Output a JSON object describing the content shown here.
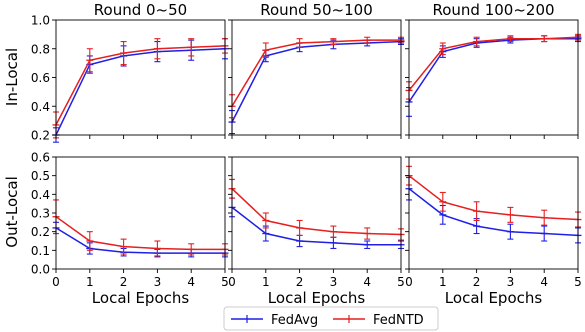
{
  "figure": {
    "ylabels": [
      "In-Local",
      "Out-Local"
    ],
    "xlabel": "Local Epochs",
    "legend_position": "bottom-center"
  },
  "chart_data": [
    {
      "type": "line",
      "row": 0,
      "col": 0,
      "title": "Round 0~50",
      "ylabel": "In-Local",
      "xlabel": "",
      "x": [
        0,
        1,
        2,
        3,
        4,
        5
      ],
      "xlim": [
        0,
        5
      ],
      "ylim": [
        0.2,
        1.0
      ],
      "yticks": [
        0.2,
        0.4,
        0.6,
        0.8,
        1.0
      ],
      "grid": false,
      "series": [
        {
          "name": "FedAvg",
          "color": "#1f1fe6",
          "values": [
            0.2,
            0.69,
            0.75,
            0.78,
            0.79,
            0.8
          ],
          "errors": [
            0.05,
            0.06,
            0.07,
            0.07,
            0.07,
            0.07
          ]
        },
        {
          "name": "FedNTD",
          "color": "#e61f1f",
          "values": [
            0.27,
            0.72,
            0.77,
            0.8,
            0.81,
            0.82
          ],
          "errors": [
            0.09,
            0.08,
            0.08,
            0.07,
            0.06,
            0.05
          ]
        }
      ]
    },
    {
      "type": "line",
      "row": 0,
      "col": 1,
      "title": "Round 50~100",
      "ylabel": "",
      "xlabel": "",
      "x": [
        0,
        1,
        2,
        3,
        4,
        5
      ],
      "xlim": [
        0,
        5
      ],
      "ylim": [
        0.2,
        1.0
      ],
      "yticks": [
        0.2,
        0.4,
        0.6,
        0.8,
        1.0
      ],
      "grid": false,
      "series": [
        {
          "name": "FedAvg",
          "color": "#1f1fe6",
          "values": [
            0.29,
            0.75,
            0.81,
            0.83,
            0.84,
            0.85
          ],
          "errors": [
            0.08,
            0.04,
            0.03,
            0.03,
            0.02,
            0.02
          ]
        },
        {
          "name": "FedNTD",
          "color": "#e61f1f",
          "values": [
            0.4,
            0.79,
            0.84,
            0.85,
            0.86,
            0.86
          ],
          "errors": [
            0.08,
            0.05,
            0.03,
            0.02,
            0.02,
            0.02
          ]
        }
      ]
    },
    {
      "type": "line",
      "row": 0,
      "col": 2,
      "title": "Round 100~200",
      "ylabel": "",
      "xlabel": "",
      "x": [
        0,
        1,
        2,
        3,
        4,
        5
      ],
      "xlim": [
        0,
        5
      ],
      "ylim": [
        0.2,
        1.0
      ],
      "yticks": [
        0.2,
        0.4,
        0.6,
        0.8,
        1.0
      ],
      "grid": false,
      "series": [
        {
          "name": "FedAvg",
          "color": "#1f1fe6",
          "values": [
            0.43,
            0.78,
            0.84,
            0.86,
            0.87,
            0.87
          ],
          "errors": [
            0.1,
            0.04,
            0.03,
            0.02,
            0.02,
            0.02
          ]
        },
        {
          "name": "FedNTD",
          "color": "#e61f1f",
          "values": [
            0.51,
            0.8,
            0.85,
            0.87,
            0.87,
            0.88
          ],
          "errors": [
            0.06,
            0.04,
            0.03,
            0.02,
            0.02,
            0.02
          ]
        }
      ]
    },
    {
      "type": "line",
      "row": 1,
      "col": 0,
      "title": "",
      "ylabel": "Out-Local",
      "xlabel": "Local Epochs",
      "x": [
        0,
        1,
        2,
        3,
        4,
        5
      ],
      "xlim": [
        0,
        5
      ],
      "ylim": [
        0.0,
        0.6
      ],
      "yticks": [
        0.0,
        0.1,
        0.2,
        0.3,
        0.4,
        0.5,
        0.6
      ],
      "grid": false,
      "series": [
        {
          "name": "FedAvg",
          "color": "#1f1fe6",
          "values": [
            0.22,
            0.11,
            0.09,
            0.085,
            0.085,
            0.085
          ],
          "errors": [
            0.03,
            0.03,
            0.02,
            0.02,
            0.02,
            0.02
          ]
        },
        {
          "name": "FedNTD",
          "color": "#e61f1f",
          "values": [
            0.28,
            0.15,
            0.12,
            0.11,
            0.105,
            0.105
          ],
          "errors": [
            0.09,
            0.05,
            0.04,
            0.04,
            0.03,
            0.03
          ]
        }
      ]
    },
    {
      "type": "line",
      "row": 1,
      "col": 1,
      "title": "",
      "ylabel": "",
      "xlabel": "Local Epochs",
      "x": [
        0,
        1,
        2,
        3,
        4,
        5
      ],
      "xlim": [
        0,
        5
      ],
      "ylim": [
        0.0,
        0.6
      ],
      "yticks": [
        0.0,
        0.1,
        0.2,
        0.3,
        0.4,
        0.5,
        0.6
      ],
      "grid": false,
      "series": [
        {
          "name": "FedAvg",
          "color": "#1f1fe6",
          "values": [
            0.33,
            0.19,
            0.15,
            0.14,
            0.13,
            0.13
          ],
          "errors": [
            0.05,
            0.04,
            0.03,
            0.03,
            0.02,
            0.02
          ]
        },
        {
          "name": "FedNTD",
          "color": "#e61f1f",
          "values": [
            0.43,
            0.26,
            0.22,
            0.2,
            0.19,
            0.185
          ],
          "errors": [
            0.05,
            0.04,
            0.04,
            0.03,
            0.03,
            0.03
          ]
        }
      ]
    },
    {
      "type": "line",
      "row": 1,
      "col": 2,
      "title": "",
      "ylabel": "",
      "xlabel": "Local Epochs",
      "x": [
        0,
        1,
        2,
        3,
        4,
        5
      ],
      "xlim": [
        0,
        5
      ],
      "ylim": [
        0.0,
        0.6
      ],
      "yticks": [
        0.0,
        0.1,
        0.2,
        0.3,
        0.4,
        0.5,
        0.6
      ],
      "grid": false,
      "series": [
        {
          "name": "FedAvg",
          "color": "#1f1fe6",
          "values": [
            0.43,
            0.29,
            0.23,
            0.2,
            0.19,
            0.18
          ],
          "errors": [
            0.06,
            0.05,
            0.04,
            0.04,
            0.04,
            0.04
          ]
        },
        {
          "name": "FedNTD",
          "color": "#e61f1f",
          "values": [
            0.5,
            0.36,
            0.31,
            0.29,
            0.275,
            0.265
          ],
          "errors": [
            0.05,
            0.05,
            0.05,
            0.04,
            0.04,
            0.04
          ]
        }
      ]
    }
  ]
}
